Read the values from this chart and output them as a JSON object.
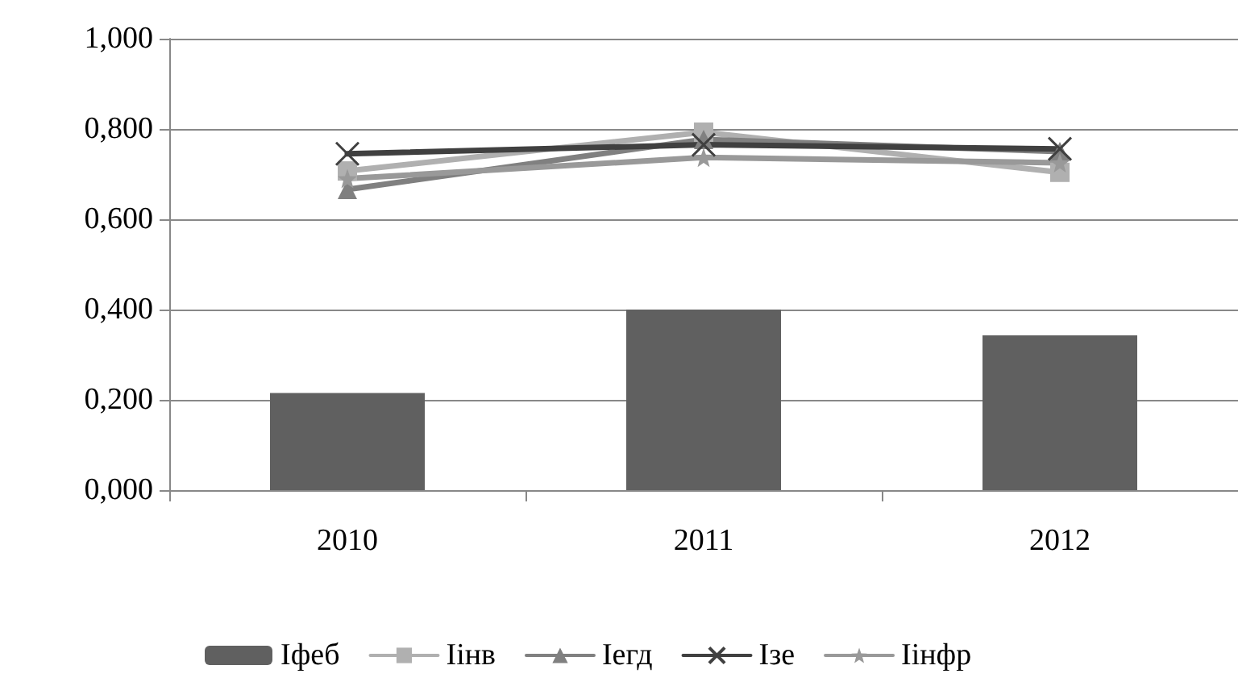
{
  "chart_data": {
    "type": "bar",
    "categories": [
      "2010",
      "2011",
      "2012"
    ],
    "series": [
      {
        "name": "Іфеб",
        "color": "#606060",
        "values": [
          0.215,
          0.4,
          0.343
        ]
      },
      {
        "name": "Іінв",
        "type": "line",
        "marker": "square",
        "color": "#b0b0b0",
        "values": [
          0.707,
          0.793,
          0.704
        ]
      },
      {
        "name": "Іегд",
        "type": "line",
        "marker": "triangle",
        "color": "#808080",
        "values": [
          0.666,
          0.777,
          0.75
        ]
      },
      {
        "name": "Ізе",
        "type": "line",
        "marker": "cross",
        "color": "#404040",
        "values": [
          0.745,
          0.765,
          0.756
        ]
      },
      {
        "name": "Іінфр",
        "type": "line",
        "marker": "star",
        "color": "#999999",
        "values": [
          0.69,
          0.737,
          0.725
        ]
      }
    ],
    "ylim": [
      0,
      1
    ],
    "yticks": [
      {
        "value": 0,
        "label": "0,000"
      },
      {
        "value": 0.2,
        "label": "0,200"
      },
      {
        "value": 0.4,
        "label": "0,400"
      },
      {
        "value": 0.6,
        "label": "0,600"
      },
      {
        "value": 0.8,
        "label": "0,800"
      },
      {
        "value": 1,
        "label": "1,000"
      }
    ],
    "grid": "y",
    "legend": "bottom",
    "line_style": "solid"
  }
}
